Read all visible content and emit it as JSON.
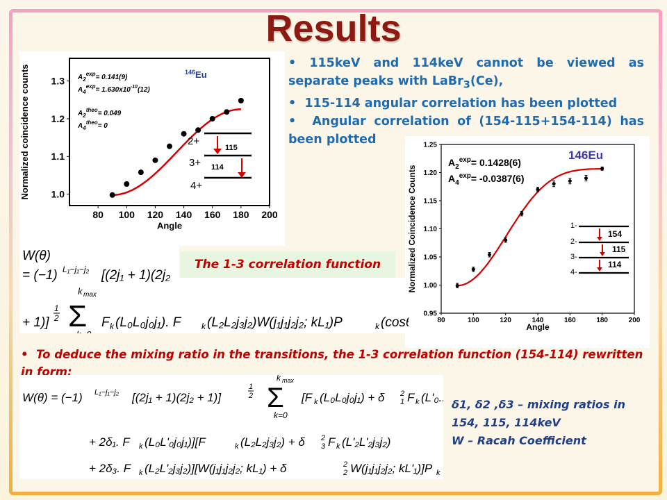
{
  "slide": {
    "title": "Results",
    "bullets": [
      "115keV and 114keV cannot be viewed as separate peaks with LaBr",
      "115-114 angular correlation has been plotted",
      "Angular correlation of (154-115+154-114) has been plotted"
    ],
    "bullet1_sub": "3",
    "bullet1_tail": "(Ce),",
    "bullet_marker": "•",
    "correlation_label": "The 1-3 correlation function",
    "deduce_text": "To deduce the mixing ratio in the transitions, the 1-3 correlation function (154-114) rewritten in form:",
    "notes": {
      "line1": "δ1, δ2 ,δ3 – mixing ratios in",
      "line2": "154, 115, 114keV",
      "line3": "W – Racah Coefficient"
    },
    "colors": {
      "title": "#8b1a12",
      "bullets": "#1f6bb0",
      "accent": "#c00000",
      "notes": "#1f3f86",
      "fit": "#d40000"
    }
  },
  "chart_data": [
    {
      "type": "scatter",
      "xlabel": "Angle",
      "ylabel": "Normalized coincidence counts",
      "xlim": [
        60,
        200
      ],
      "ylim": [
        0.97,
        1.36
      ],
      "xticks": [
        80,
        100,
        120,
        140,
        160,
        180,
        200
      ],
      "yticks": [
        1.0,
        1.1,
        1.2,
        1.3
      ],
      "x": [
        90,
        100,
        110,
        120,
        130,
        140,
        150,
        160,
        170,
        180
      ],
      "y": [
        0.998,
        1.027,
        1.058,
        1.09,
        1.127,
        1.16,
        1.17,
        1.2,
        1.218,
        1.248
      ],
      "fit": {
        "A2": 0.141,
        "A4": 0.0
      },
      "nucleus": {
        "mass": "146",
        "symbol": "Eu"
      },
      "annotations": {
        "A2exp": "= 0.141(9)",
        "A4exp": "= 1.630x10",
        "A4exp_pow": "-10",
        "A4exp_tail": "(12)",
        "A2theo": "= 0.049",
        "A4theo": "= 0",
        "exp": "exp",
        "theo": "theo"
      },
      "levels": [
        "2+",
        "3+",
        "4+"
      ],
      "transitions": [
        "115",
        "114"
      ]
    },
    {
      "type": "scatter",
      "xlabel": "Angle",
      "ylabel": "Normalized Coincidence Counts",
      "xlim": [
        80,
        200
      ],
      "ylim": [
        0.95,
        1.25
      ],
      "xticks": [
        80,
        100,
        120,
        140,
        160,
        180,
        200
      ],
      "yticks": [
        0.95,
        1.0,
        1.05,
        1.1,
        1.15,
        1.2,
        1.25
      ],
      "x": [
        90,
        100,
        110,
        120,
        130,
        140,
        150,
        160,
        170,
        180
      ],
      "y": [
        0.999,
        1.028,
        1.054,
        1.08,
        1.127,
        1.17,
        1.18,
        1.185,
        1.19,
        1.207
      ],
      "err": [
        0.004,
        0.004,
        0.004,
        0.004,
        0.004,
        0.004,
        0.005,
        0.005,
        0.005,
        0.003
      ],
      "fit": {
        "A2": 0.1428,
        "A4": -0.0387
      },
      "nucleus": "146Eu",
      "annotations": {
        "A2exp": "= 0.1428(6)",
        "A4exp": "= -0.0387(6)",
        "exp": "exp"
      },
      "levels": [
        "1-",
        "2-",
        "3-",
        "4-"
      ],
      "transitions": [
        "154",
        "115",
        "114"
      ]
    }
  ]
}
